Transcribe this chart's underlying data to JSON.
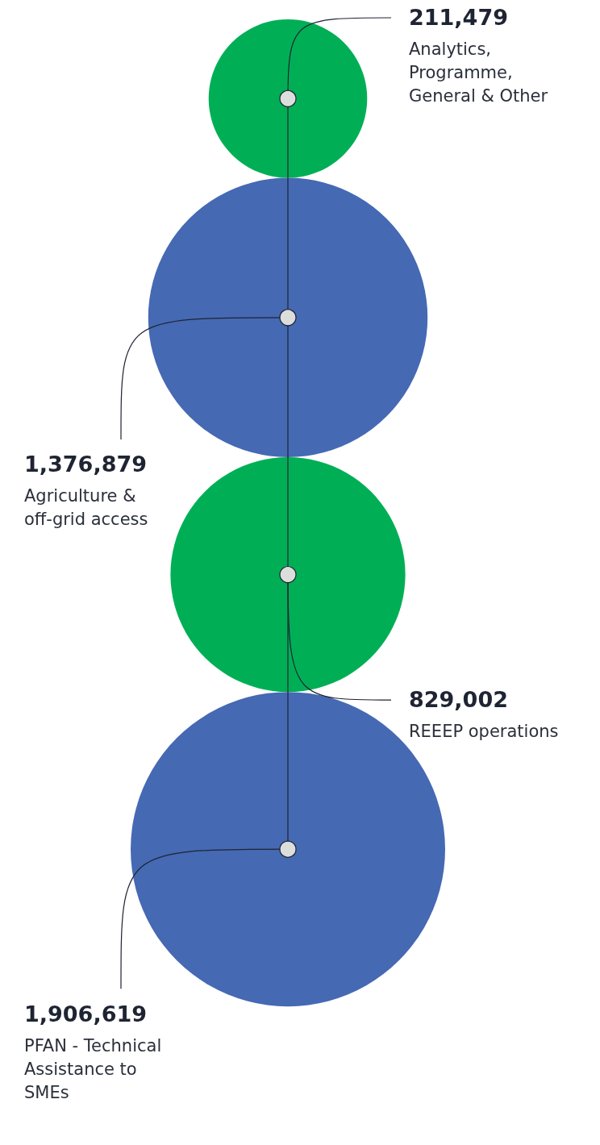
{
  "chart_data": {
    "type": "other",
    "categories": [
      "Analytics, Programme, General & Other",
      "Agriculture & off-grid access",
      "REEEP operations",
      "PFAN - Technical Assistance to SMEs"
    ],
    "values": [
      211479,
      1376879,
      829002,
      1906619
    ],
    "colors": [
      "#00af55",
      "#4569b3",
      "#00af55",
      "#4569b3"
    ],
    "value_labels": [
      "211,479",
      "1,376,879",
      "829,002",
      "1,906,619"
    ]
  }
}
